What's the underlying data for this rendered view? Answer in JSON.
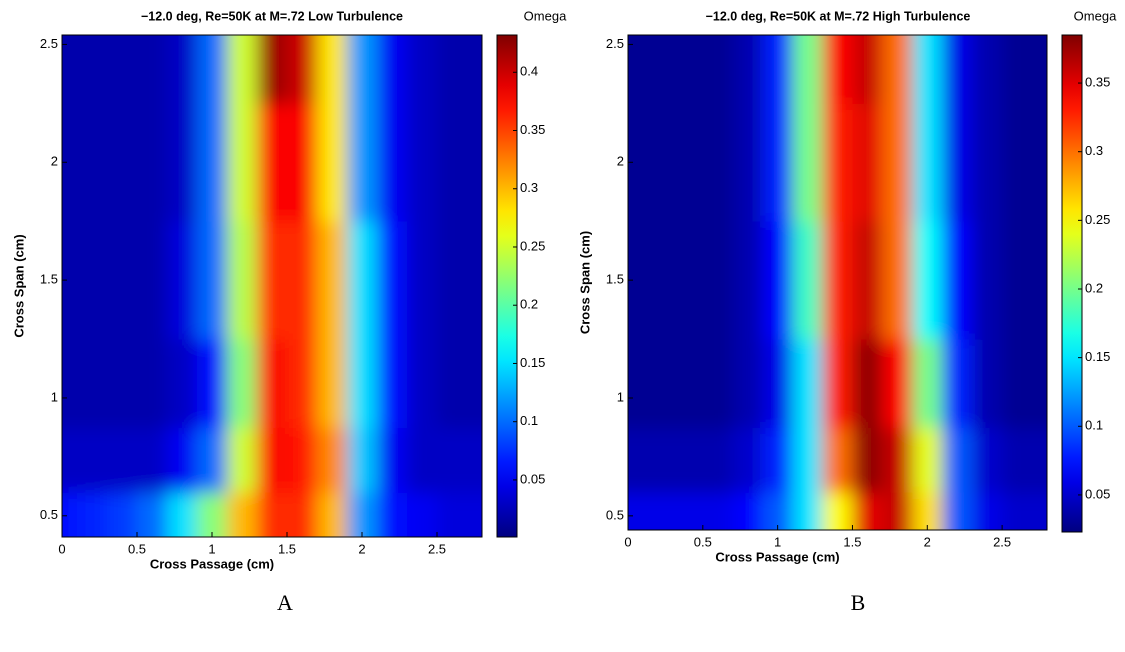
{
  "chart_data": [
    {
      "type": "contour",
      "colormap": "jet",
      "title": "−12.0 deg, Re=50K at M=.72 Low Turbulence",
      "colorbar_label": "Omega",
      "xlabel": "Cross Passage (cm)",
      "ylabel": "Cross Span (cm)",
      "panel_label": "A",
      "xlim": [
        0,
        2.8
      ],
      "ylim": [
        0.41,
        2.54
      ],
      "xticks": [
        0,
        0.5,
        1,
        1.5,
        2,
        2.5
      ],
      "yticks": [
        0.5,
        1,
        1.5,
        2,
        2.5
      ],
      "clim": [
        0.001,
        0.432
      ],
      "cticks": [
        0.05,
        0.1,
        0.15,
        0.2,
        0.25,
        0.3,
        0.35,
        0.4
      ],
      "x": [
        0,
        0.2,
        0.4,
        0.6,
        0.8,
        1.0,
        1.2,
        1.4,
        1.6,
        1.8,
        2.0,
        2.2,
        2.4,
        2.6,
        2.8
      ],
      "y": [
        0.45,
        0.75,
        1.0,
        1.5,
        2.0,
        2.5
      ],
      "z": [
        [
          0.06,
          0.07,
          0.08,
          0.1,
          0.15,
          0.22,
          0.3,
          0.36,
          0.36,
          0.3,
          0.12,
          0.06,
          0.05,
          0.04,
          0.04
        ],
        [
          0.03,
          0.03,
          0.03,
          0.03,
          0.05,
          0.1,
          0.25,
          0.38,
          0.37,
          0.32,
          0.14,
          0.05,
          0.03,
          0.03,
          0.03
        ],
        [
          0.02,
          0.02,
          0.02,
          0.02,
          0.03,
          0.06,
          0.22,
          0.38,
          0.36,
          0.3,
          0.15,
          0.06,
          0.03,
          0.02,
          0.02
        ],
        [
          0.02,
          0.02,
          0.02,
          0.02,
          0.04,
          0.1,
          0.24,
          0.36,
          0.36,
          0.3,
          0.15,
          0.06,
          0.03,
          0.02,
          0.02
        ],
        [
          0.02,
          0.02,
          0.02,
          0.02,
          0.03,
          0.1,
          0.25,
          0.38,
          0.38,
          0.28,
          0.12,
          0.05,
          0.03,
          0.02,
          0.02
        ],
        [
          0.02,
          0.02,
          0.02,
          0.02,
          0.03,
          0.1,
          0.25,
          0.42,
          0.4,
          0.28,
          0.12,
          0.05,
          0.03,
          0.02,
          0.02
        ]
      ]
    },
    {
      "type": "contour",
      "colormap": "jet",
      "title": "−12.0 deg, Re=50K at M=.72 High Turbulence",
      "colorbar_label": "Omega",
      "xlabel": "Cross Passage (cm)",
      "ylabel": "Cross Span (cm)",
      "panel_label": "B",
      "xlim": [
        0,
        2.8
      ],
      "ylim": [
        0.44,
        2.54
      ],
      "xticks": [
        0,
        0.5,
        1,
        1.5,
        2,
        2.5
      ],
      "yticks": [
        0.5,
        1,
        1.5,
        2,
        2.5
      ],
      "clim": [
        0.023,
        0.385
      ],
      "cticks": [
        0.05,
        0.1,
        0.15,
        0.2,
        0.25,
        0.3,
        0.35
      ],
      "x": [
        0,
        0.2,
        0.4,
        0.6,
        0.8,
        1.0,
        1.2,
        1.4,
        1.6,
        1.8,
        2.0,
        2.2,
        2.4,
        2.6,
        2.8
      ],
      "y": [
        0.45,
        0.75,
        1.0,
        1.5,
        2.0,
        2.5
      ],
      "z": [
        [
          0.06,
          0.06,
          0.06,
          0.06,
          0.07,
          0.1,
          0.15,
          0.25,
          0.35,
          0.36,
          0.26,
          0.1,
          0.06,
          0.05,
          0.05
        ],
        [
          0.04,
          0.04,
          0.04,
          0.04,
          0.05,
          0.08,
          0.15,
          0.3,
          0.38,
          0.36,
          0.24,
          0.1,
          0.05,
          0.04,
          0.04
        ],
        [
          0.03,
          0.03,
          0.03,
          0.03,
          0.04,
          0.06,
          0.15,
          0.33,
          0.38,
          0.34,
          0.2,
          0.08,
          0.04,
          0.03,
          0.03
        ],
        [
          0.03,
          0.03,
          0.03,
          0.03,
          0.04,
          0.07,
          0.18,
          0.33,
          0.36,
          0.3,
          0.16,
          0.07,
          0.04,
          0.03,
          0.03
        ],
        [
          0.03,
          0.03,
          0.03,
          0.03,
          0.04,
          0.08,
          0.2,
          0.33,
          0.35,
          0.3,
          0.15,
          0.06,
          0.04,
          0.03,
          0.03
        ],
        [
          0.03,
          0.03,
          0.03,
          0.03,
          0.04,
          0.08,
          0.2,
          0.34,
          0.36,
          0.3,
          0.15,
          0.06,
          0.04,
          0.03,
          0.03
        ]
      ]
    }
  ]
}
